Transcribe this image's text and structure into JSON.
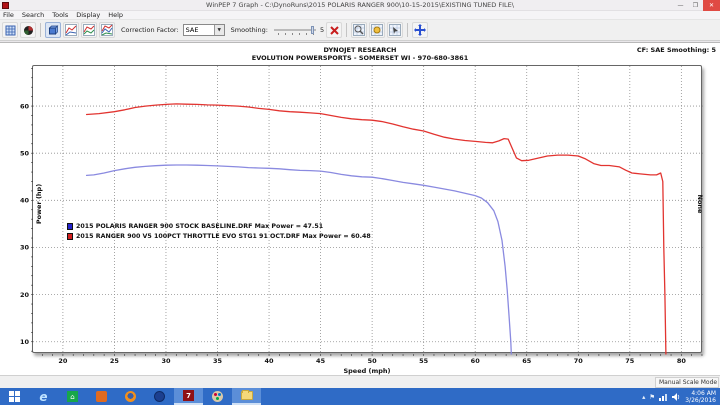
{
  "window": {
    "title": "WinPEP 7    Graph - C:\\DynoRuns\\2015 POLARIS RANGER 900\\10-15-2015\\EXISTING TUNED FILE\\",
    "controls": {
      "minimize": "—",
      "maximize": "❐",
      "close": "✕"
    }
  },
  "menu": {
    "items": [
      "File",
      "Search",
      "Tools",
      "Display",
      "Help"
    ]
  },
  "toolbar": {
    "correction_factor_label": "Correction Factor:",
    "correction_factor_value": "SAE",
    "smoothing_label": "Smoothing:",
    "smoothing_value": "5"
  },
  "graph_header": {
    "line1": "DYNOJET RESEARCH",
    "line2": "EVOLUTION POWERSPORTS - SOMERSET WI - 970-680-3861",
    "right": "CF: SAE  Smoothing: 5"
  },
  "status_bar": {
    "mode": "Manual Scale Mode"
  },
  "taskbar": {
    "time": "4:06 AM",
    "date": "3/26/2016",
    "tray_expand": "▴",
    "flag": "⚑"
  },
  "chart_data": {
    "type": "line",
    "title": "",
    "xlabel": "Speed (mph)",
    "ylabel": "Power (hp)",
    "right_axis_label": "None",
    "xlim": [
      17.1,
      82.1
    ],
    "ylim": [
      7.4,
      68.5
    ],
    "xticks": [
      20,
      25,
      30,
      35,
      40,
      45,
      50,
      55,
      60,
      65,
      70,
      75,
      80
    ],
    "yticks": [
      10,
      20,
      30,
      40,
      50,
      60
    ],
    "grid": true,
    "legend_position": "left-middle",
    "legend": [
      {
        "color": "#2424cc",
        "label": "2015 POLARIS RANGER 900 STOCK BASELINE.DRF Max Power = 47.51"
      },
      {
        "color": "#d42020",
        "label": "2015 RANGER 900 V5 100PCT THROTTLE EVO STG1 91 OCT.DRF Max Power = 60.48"
      }
    ],
    "series": [
      {
        "name": "2015 POLARIS RANGER 900 STOCK BASELINE.DRF",
        "max_power": 47.51,
        "color": "#8a8ae0",
        "points": [
          [
            22.3,
            45.3
          ],
          [
            23,
            45.4
          ],
          [
            24,
            45.8
          ],
          [
            25,
            46.3
          ],
          [
            26,
            46.7
          ],
          [
            27,
            47.0
          ],
          [
            28,
            47.2
          ],
          [
            29,
            47.35
          ],
          [
            30,
            47.45
          ],
          [
            31,
            47.5
          ],
          [
            32,
            47.5
          ],
          [
            33,
            47.45
          ],
          [
            34,
            47.4
          ],
          [
            35,
            47.3
          ],
          [
            36,
            47.2
          ],
          [
            37,
            47.1
          ],
          [
            38,
            46.95
          ],
          [
            39,
            46.85
          ],
          [
            40,
            46.8
          ],
          [
            41,
            46.7
          ],
          [
            42,
            46.5
          ],
          [
            43,
            46.35
          ],
          [
            44,
            46.3
          ],
          [
            45,
            46.2
          ],
          [
            46,
            45.9
          ],
          [
            47,
            45.5
          ],
          [
            48,
            45.2
          ],
          [
            49,
            45.0
          ],
          [
            50,
            44.9
          ],
          [
            51,
            44.6
          ],
          [
            52,
            44.2
          ],
          [
            53,
            43.8
          ],
          [
            54,
            43.5
          ],
          [
            55,
            43.2
          ],
          [
            56,
            42.8
          ],
          [
            57,
            42.4
          ],
          [
            58,
            42.0
          ],
          [
            59,
            41.5
          ],
          [
            60,
            41.0
          ],
          [
            60.6,
            40.5
          ],
          [
            61.2,
            39.5
          ],
          [
            61.8,
            37.8
          ],
          [
            62.2,
            35.5
          ],
          [
            62.6,
            31.5
          ],
          [
            62.9,
            26.0
          ],
          [
            63.1,
            21.0
          ],
          [
            63.3,
            15.0
          ],
          [
            63.45,
            10.0
          ],
          [
            63.5,
            7.4
          ]
        ]
      },
      {
        "name": "2015 RANGER 900 V5 100PCT THROTTLE EVO STG1 91 OCT.DRF",
        "max_power": 60.48,
        "color": "#e23430",
        "points": [
          [
            22.3,
            58.2
          ],
          [
            23.5,
            58.4
          ],
          [
            25,
            58.8
          ],
          [
            26,
            59.2
          ],
          [
            27,
            59.7
          ],
          [
            28,
            60.0
          ],
          [
            29,
            60.2
          ],
          [
            30,
            60.35
          ],
          [
            31,
            60.45
          ],
          [
            32,
            60.4
          ],
          [
            33,
            60.35
          ],
          [
            34,
            60.25
          ],
          [
            35,
            60.2
          ],
          [
            36,
            60.1
          ],
          [
            37,
            60.0
          ],
          [
            38,
            59.8
          ],
          [
            39,
            59.5
          ],
          [
            40,
            59.3
          ],
          [
            41,
            59.0
          ],
          [
            42,
            58.8
          ],
          [
            43,
            58.7
          ],
          [
            44,
            58.55
          ],
          [
            45,
            58.4
          ],
          [
            46,
            58.0
          ],
          [
            47,
            57.6
          ],
          [
            48,
            57.3
          ],
          [
            49,
            57.1
          ],
          [
            50,
            57.0
          ],
          [
            51,
            56.7
          ],
          [
            52,
            56.2
          ],
          [
            53,
            55.6
          ],
          [
            54,
            55.1
          ],
          [
            55,
            54.7
          ],
          [
            56,
            54.0
          ],
          [
            57,
            53.4
          ],
          [
            58,
            53.0
          ],
          [
            59,
            52.7
          ],
          [
            60,
            52.5
          ],
          [
            61,
            52.3
          ],
          [
            61.7,
            52.2
          ],
          [
            62.3,
            52.6
          ],
          [
            62.8,
            53.1
          ],
          [
            63.2,
            53.0
          ],
          [
            63.6,
            51.0
          ],
          [
            64.0,
            49.0
          ],
          [
            64.5,
            48.4
          ],
          [
            65.2,
            48.5
          ],
          [
            66,
            48.9
          ],
          [
            67,
            49.4
          ],
          [
            68,
            49.6
          ],
          [
            69,
            49.6
          ],
          [
            70,
            49.4
          ],
          [
            70.7,
            48.8
          ],
          [
            71.5,
            47.8
          ],
          [
            72.2,
            47.4
          ],
          [
            73,
            47.4
          ],
          [
            74,
            47.1
          ],
          [
            74.6,
            46.4
          ],
          [
            75.2,
            45.8
          ],
          [
            76,
            45.6
          ],
          [
            77,
            45.4
          ],
          [
            77.6,
            45.4
          ],
          [
            78.0,
            45.8
          ],
          [
            78.2,
            44.0
          ],
          [
            78.3,
            30.0
          ],
          [
            78.4,
            20.0
          ],
          [
            78.5,
            7.4
          ]
        ]
      }
    ]
  }
}
